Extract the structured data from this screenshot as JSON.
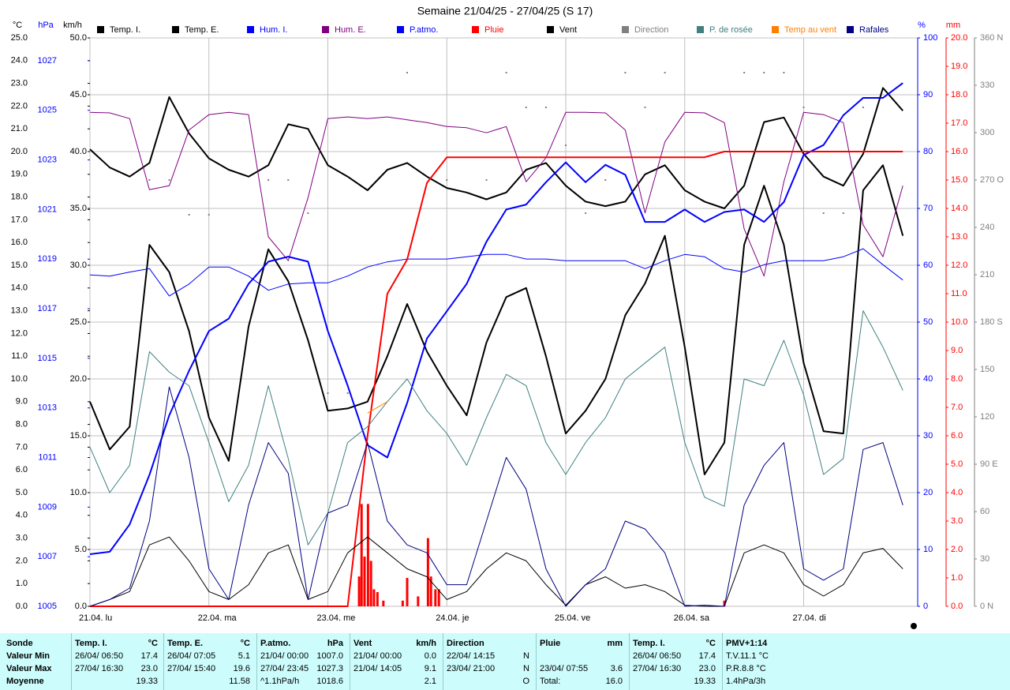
{
  "chart_data": {
    "type": "line",
    "title": "Semaine 21/04/25 - 27/04/25 (S 17)",
    "xlim": [
      0,
      167
    ],
    "xticks": [
      {
        "value": 0,
        "label": "21.04. lu"
      },
      {
        "value": 24,
        "label": "22.04. ma"
      },
      {
        "value": 48,
        "label": "23.04. me"
      },
      {
        "value": 72,
        "label": "24.04. je"
      },
      {
        "value": 96,
        "label": "25.04. ve"
      },
      {
        "value": 120,
        "label": "26.04. sa"
      },
      {
        "value": 144,
        "label": "27.04. di"
      }
    ],
    "grid": true,
    "grid_axis": 2,
    "axes": [
      {
        "unit": "°C",
        "color": "#000000",
        "lim": [
          0,
          25
        ],
        "ticks": [
          {
            "value": 0,
            "label": "0.0"
          },
          {
            "value": 1,
            "label": "1.0"
          },
          {
            "value": 2,
            "label": "2.0"
          },
          {
            "value": 3,
            "label": "3.0"
          },
          {
            "value": 4,
            "label": "4.0"
          },
          {
            "value": 5,
            "label": "5.0"
          },
          {
            "value": 6,
            "label": "6.0"
          },
          {
            "value": 7,
            "label": "7.0"
          },
          {
            "value": 8,
            "label": "8.0"
          },
          {
            "value": 9,
            "label": "9.0"
          },
          {
            "value": 10,
            "label": "10.0"
          },
          {
            "value": 11,
            "label": "11.0"
          },
          {
            "value": 12,
            "label": "12.0"
          },
          {
            "value": 13,
            "label": "13.0"
          },
          {
            "value": 14,
            "label": "14.0"
          },
          {
            "value": 15,
            "label": "15.0"
          },
          {
            "value": 16,
            "label": "16.0"
          },
          {
            "value": 17,
            "label": "17.0"
          },
          {
            "value": 18,
            "label": "18.0"
          },
          {
            "value": 19,
            "label": "19.0"
          },
          {
            "value": 20,
            "label": "20.0"
          },
          {
            "value": 21,
            "label": "21.0"
          },
          {
            "value": 22,
            "label": "22.0"
          },
          {
            "value": 23,
            "label": "23.0"
          },
          {
            "value": 24,
            "label": "24.0"
          },
          {
            "value": 25,
            "label": "25.0"
          }
        ]
      },
      {
        "unit": "hPa",
        "color": "#0000ff",
        "lim": [
          1005,
          1027.92
        ],
        "ticks": [
          1005,
          1007,
          1009,
          1011,
          1013,
          1015,
          1017,
          1019,
          1021,
          1023,
          1025,
          1027
        ]
      },
      {
        "unit": "km/h",
        "color": "#000000",
        "lim": [
          0,
          50
        ],
        "ticks": [
          {
            "value": 0,
            "label": "0.0"
          },
          {
            "value": 5,
            "label": "5.0"
          },
          {
            "value": 10,
            "label": "10.0"
          },
          {
            "value": 15,
            "label": "15.0"
          },
          {
            "value": 20,
            "label": "20.0"
          },
          {
            "value": 25,
            "label": "25.0"
          },
          {
            "value": 30,
            "label": "30.0"
          },
          {
            "value": 35,
            "label": "35.0"
          },
          {
            "value": 40,
            "label": "40.0"
          },
          {
            "value": 45,
            "label": "45.0"
          },
          {
            "value": 50,
            "label": "50.0"
          }
        ]
      },
      {
        "unit": "%",
        "color": "#0000ff",
        "lim": [
          0,
          100
        ],
        "ticks": [
          0,
          10,
          20,
          30,
          40,
          50,
          60,
          70,
          80,
          90,
          100
        ]
      },
      {
        "unit": "mm",
        "color": "#ff0000",
        "lim": [
          0,
          20
        ],
        "ticks": [
          {
            "value": 0,
            "label": "0.0"
          },
          {
            "value": 1,
            "label": "1.0"
          },
          {
            "value": 2,
            "label": "2.0"
          },
          {
            "value": 3,
            "label": "3.0"
          },
          {
            "value": 4,
            "label": "4.0"
          },
          {
            "value": 5,
            "label": "5.0"
          },
          {
            "value": 6,
            "label": "6.0"
          },
          {
            "value": 7,
            "label": "7.0"
          },
          {
            "value": 8,
            "label": "8.0"
          },
          {
            "value": 9,
            "label": "9.0"
          },
          {
            "value": 10,
            "label": "10.0"
          },
          {
            "value": 11,
            "label": "11.0"
          },
          {
            "value": 12,
            "label": "12.0"
          },
          {
            "value": 13,
            "label": "13.0"
          },
          {
            "value": 14,
            "label": "14.0"
          },
          {
            "value": 15,
            "label": "15.0"
          },
          {
            "value": 16,
            "label": "16.0"
          },
          {
            "value": 17,
            "label": "17.0"
          },
          {
            "value": 18,
            "label": "18.0"
          },
          {
            "value": 19,
            "label": "19.0"
          },
          {
            "value": 20,
            "label": "20.0"
          }
        ]
      },
      {
        "color": "#808080",
        "lim": [
          0,
          360
        ],
        "ticks": [
          {
            "value": 0,
            "label": "0 N"
          },
          30,
          60,
          {
            "value": 90,
            "label": "90 E"
          },
          120,
          150,
          {
            "value": 180,
            "label": "180 S"
          },
          210,
          240,
          {
            "value": 270,
            "label": "270 O"
          },
          300,
          330,
          {
            "value": 360,
            "label": "360 N"
          }
        ]
      }
    ],
    "x": [
      0,
      4,
      8,
      12,
      16,
      20,
      24,
      28,
      32,
      36,
      40,
      44,
      48,
      52,
      56,
      60,
      64,
      68,
      72,
      76,
      80,
      84,
      88,
      92,
      96,
      100,
      104,
      108,
      112,
      116,
      120,
      124,
      128,
      132,
      136,
      140,
      144,
      148,
      152,
      156,
      160,
      164
    ],
    "series": [
      {
        "name": "Temp. I.",
        "color": "#000000",
        "axis": 0,
        "width": 2,
        "values": [
          20.1,
          19.3,
          18.9,
          19.5,
          22.4,
          20.8,
          19.7,
          19.2,
          18.9,
          19.4,
          21.2,
          21.0,
          19.4,
          18.9,
          18.3,
          19.2,
          19.5,
          18.9,
          18.4,
          18.2,
          17.9,
          18.2,
          19.2,
          19.5,
          18.5,
          17.8,
          17.6,
          17.8,
          19.0,
          19.4,
          18.3,
          17.8,
          17.5,
          18.5,
          21.3,
          21.5,
          19.9,
          18.9,
          18.5,
          19.9,
          22.8,
          21.8
        ]
      },
      {
        "name": "Temp. E.",
        "color": "#000000",
        "axis": 0,
        "width": 2,
        "values": [
          9.0,
          6.9,
          7.9,
          15.9,
          14.7,
          12.1,
          8.3,
          6.4,
          12.3,
          15.7,
          14.3,
          11.7,
          8.6,
          8.7,
          9.0,
          11.0,
          13.3,
          11.2,
          9.7,
          8.4,
          11.6,
          13.6,
          14.0,
          11.0,
          7.6,
          8.6,
          10.0,
          12.8,
          14.2,
          16.3,
          11.4,
          5.8,
          7.2,
          15.9,
          18.5,
          15.9,
          10.7,
          7.7,
          7.6,
          18.3,
          19.4,
          16.3
        ]
      },
      {
        "name": "Hum. I.",
        "color": "#0000ff",
        "axis": 3,
        "width": 1,
        "values": [
          58.3,
          58.1,
          58.8,
          59.4,
          54.6,
          56.7,
          59.7,
          59.7,
          58.1,
          55.6,
          56.7,
          56.9,
          56.9,
          58.1,
          59.7,
          60.6,
          61.1,
          61.1,
          61.1,
          61.5,
          61.9,
          61.9,
          61.1,
          61.1,
          60.8,
          60.8,
          60.8,
          60.8,
          59.4,
          60.8,
          61.9,
          61.5,
          59.4,
          58.8,
          60.1,
          60.8,
          60.8,
          60.8,
          61.5,
          62.9,
          60.1,
          57.4
        ]
      },
      {
        "name": "Hum. E.",
        "color": "#800080",
        "axis": 3,
        "width": 1,
        "values": [
          86.9,
          86.8,
          85.8,
          73.3,
          74.0,
          83.8,
          86.5,
          86.9,
          86.5,
          65.0,
          60.8,
          71.9,
          85.8,
          86.1,
          85.8,
          86.1,
          85.6,
          85.1,
          84.4,
          84.2,
          83.3,
          84.4,
          74.7,
          78.9,
          86.9,
          86.9,
          86.8,
          83.8,
          69.2,
          81.7,
          86.9,
          86.8,
          85.1,
          66.4,
          58.1,
          74.7,
          86.9,
          86.5,
          85.1,
          67.1,
          61.5,
          74.0
        ]
      },
      {
        "name": "P.atmo.",
        "color": "#0000ff",
        "axis": 1,
        "width": 2,
        "values": [
          1007.1,
          1007.2,
          1008.3,
          1010.3,
          1012.7,
          1014.5,
          1016.1,
          1016.6,
          1018.0,
          1018.9,
          1019.1,
          1018.9,
          1016.1,
          1013.9,
          1011.5,
          1011.0,
          1013.2,
          1015.8,
          1016.9,
          1018.0,
          1019.7,
          1021.0,
          1021.2,
          1022.1,
          1022.9,
          1022.1,
          1022.8,
          1022.4,
          1020.5,
          1020.5,
          1021.0,
          1020.5,
          1020.9,
          1021.0,
          1020.5,
          1021.3,
          1023.2,
          1023.6,
          1024.8,
          1025.5,
          1025.5,
          1026.1
        ]
      },
      {
        "name": "Pluie",
        "color": "#ff0000",
        "axis": 4,
        "width": 2,
        "values": [
          0,
          0,
          0,
          0,
          0,
          0,
          0,
          0,
          0,
          0,
          0,
          0,
          0,
          0,
          6.0,
          11.0,
          12.2,
          14.9,
          15.8,
          15.8,
          15.8,
          15.8,
          15.8,
          15.8,
          15.8,
          15.8,
          15.8,
          15.8,
          15.8,
          15.8,
          15.8,
          15.8,
          16.0,
          16.0,
          16.0,
          16.0,
          16.0,
          16.0,
          16.0,
          16.0,
          16.0,
          16.0
        ],
        "bars": {
          "x": [
            54.3,
            54.8,
            55.4,
            56.1,
            56.7,
            57.3,
            58.0,
            59.2,
            63.1,
            64.0,
            66.2,
            68.2,
            68.8,
            69.7,
            70.4,
            128.0
          ],
          "values": [
            1.05,
            3.6,
            1.75,
            3.6,
            1.6,
            0.6,
            0.5,
            0.2,
            0.2,
            1.0,
            0.35,
            2.4,
            1.05,
            0.6,
            0.6,
            0.2
          ]
        }
      },
      {
        "name": "Vent",
        "color": "#000000",
        "axis": 2,
        "width": 1,
        "values": [
          0.0,
          0.6,
          1.3,
          5.4,
          6.1,
          4.0,
          1.3,
          0.6,
          1.9,
          4.7,
          5.4,
          0.6,
          1.3,
          4.7,
          6.1,
          4.7,
          3.3,
          2.6,
          0.6,
          1.3,
          3.3,
          4.7,
          4.0,
          1.9,
          0.1,
          1.9,
          2.6,
          1.6,
          1.9,
          1.3,
          0.1,
          0.0,
          0.0,
          4.7,
          5.4,
          4.7,
          1.9,
          0.9,
          1.9,
          4.7,
          5.1,
          3.3
        ]
      },
      {
        "name": "Direction",
        "color": "#808080",
        "axis": 5,
        "style": "dots",
        "values": [
          null,
          null,
          null,
          270,
          270,
          248,
          248,
          null,
          null,
          270,
          270,
          249,
          135,
          135,
          null,
          null,
          338,
          null,
          270,
          null,
          270,
          338,
          316,
          316,
          292,
          249,
          270,
          338,
          316,
          338,
          null,
          null,
          null,
          338,
          338,
          338,
          316,
          249,
          249,
          316,
          null,
          null
        ]
      },
      {
        "name": "P. de rosée",
        "color": "#408080",
        "axis": 0,
        "width": 1,
        "values": [
          7.0,
          5.0,
          6.2,
          11.2,
          10.3,
          9.7,
          7.2,
          4.6,
          6.2,
          9.7,
          6.5,
          2.7,
          4.1,
          7.2,
          7.9,
          9.0,
          10.0,
          8.6,
          7.6,
          6.2,
          8.3,
          10.2,
          9.7,
          7.2,
          5.8,
          7.2,
          8.3,
          10.0,
          10.7,
          11.4,
          7.2,
          4.8,
          4.4,
          10.0,
          9.7,
          11.7,
          9.3,
          5.8,
          6.5,
          13.0,
          11.4,
          9.5
        ]
      },
      {
        "name": "Temp au vent",
        "color": "#ff8000",
        "axis": 0,
        "width": 1,
        "values": [
          null,
          null,
          null,
          null,
          null,
          null,
          null,
          null,
          null,
          null,
          null,
          null,
          null,
          null,
          8.5,
          9.0,
          null,
          null,
          null,
          null,
          null,
          null,
          null,
          null,
          null,
          null,
          null,
          null,
          null,
          null,
          null,
          null,
          null,
          null,
          null,
          null,
          null,
          null,
          null,
          null,
          null,
          null
        ]
      },
      {
        "name": "Rafales",
        "color": "#000080",
        "axis": 2,
        "width": 1,
        "values": [
          0.0,
          0.6,
          1.6,
          7.5,
          19.3,
          13.1,
          3.3,
          0.6,
          8.9,
          14.4,
          11.7,
          0.6,
          8.2,
          8.9,
          14.4,
          7.5,
          5.4,
          4.7,
          1.9,
          1.9,
          7.5,
          13.1,
          10.3,
          3.3,
          0.0,
          1.9,
          3.3,
          7.5,
          6.8,
          4.7,
          0.0,
          0.1,
          0.0,
          8.9,
          12.4,
          14.4,
          3.3,
          2.3,
          3.3,
          13.8,
          14.4,
          8.9
        ]
      }
    ]
  },
  "footer": {
    "row_labels": [
      "Sonde",
      "Valeur Min",
      "Valeur Max",
      "Moyenne"
    ],
    "sections": [
      {
        "title": "Temp. I.",
        "unit": "°C",
        "rows": [
          [
            "26/04/ 06:50",
            "17.4"
          ],
          [
            "27/04/ 16:30",
            "23.0"
          ],
          [
            null,
            "19.33"
          ]
        ]
      },
      {
        "title": "Temp. E.",
        "unit": "°C",
        "rows": [
          [
            "26/04/ 07:05",
            "5.1"
          ],
          [
            "27/04/ 15:40",
            "19.6"
          ],
          [
            null,
            "11.58"
          ]
        ]
      },
      {
        "title": "P.atmo.",
        "unit": "hPa",
        "rows": [
          [
            "21/04/ 00:00",
            "1007.0"
          ],
          [
            "27/04/ 23:45",
            "1027.3"
          ],
          [
            "^1.1hPa/h",
            "1018.6"
          ]
        ]
      },
      {
        "title": "Vent",
        "unit": "km/h",
        "rows": [
          [
            "21/04/ 00:00",
            "0.0"
          ],
          [
            "21/04/ 14:05",
            "9.1"
          ],
          [
            null,
            "2.1"
          ]
        ]
      },
      {
        "title": "Direction",
        "unit": null,
        "rows": [
          [
            "22/04/ 14:15",
            "N"
          ],
          [
            "23/04/ 21:00",
            "N"
          ],
          [
            null,
            "O"
          ]
        ]
      },
      {
        "title": "Pluie",
        "unit": "mm",
        "rows": [
          [
            null,
            null
          ],
          [
            "23/04/ 07:55",
            "3.6"
          ],
          [
            "Total:",
            "16.0"
          ]
        ]
      },
      {
        "title": "Temp. I.",
        "unit": "°C",
        "rows": [
          [
            "26/04/ 06:50",
            "17.4"
          ],
          [
            "27/04/ 16:30",
            "23.0"
          ],
          [
            null,
            "19.33"
          ]
        ]
      },
      {
        "title": "PMV+1:14",
        "unit": null,
        "rows": [
          [
            "T.V.11.1 °C",
            null
          ],
          [
            "P.R.8.8 °C",
            null
          ],
          [
            "1.4hPa/3h",
            null
          ]
        ]
      }
    ]
  }
}
